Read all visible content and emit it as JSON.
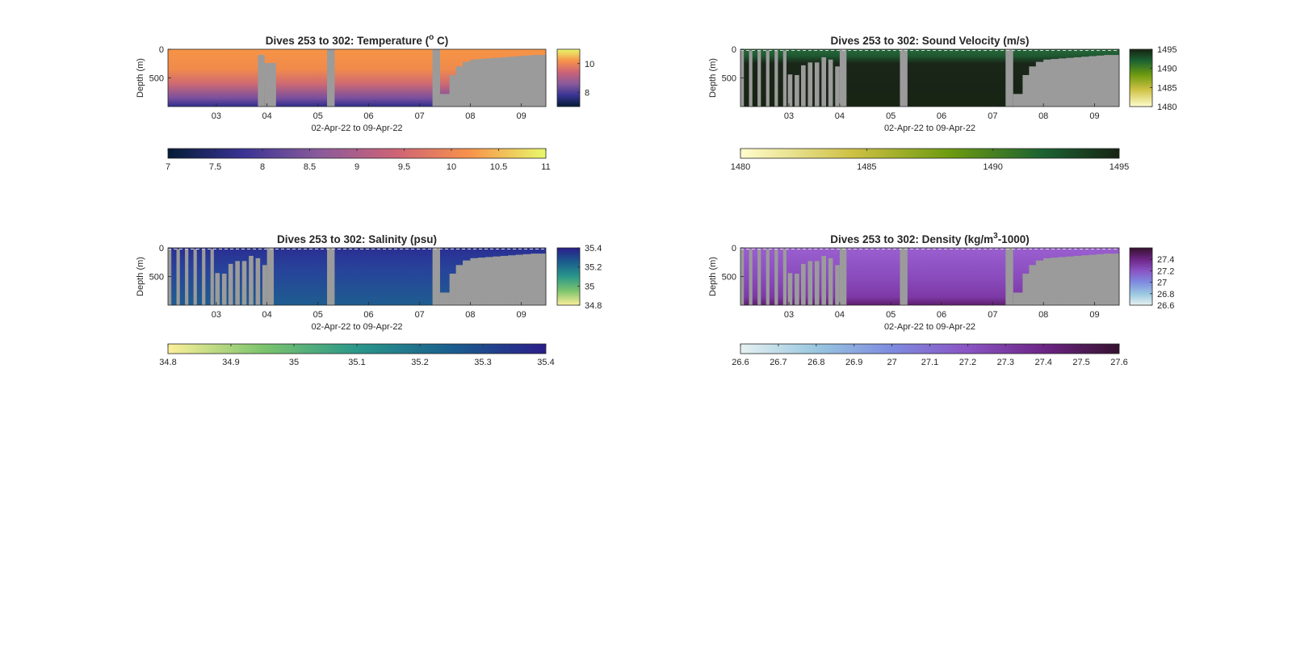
{
  "chart_data": [
    {
      "type": "heatmap",
      "title": "Dives 253 to 302: Temperature (",
      "title_sup": "o",
      "title_end": " C)",
      "xlabel": "02-Apr-22 to 09-Apr-22",
      "ylabel": "Depth (m)",
      "x_ticklabels": [
        "03",
        "04",
        "05",
        "06",
        "07",
        "08",
        "09"
      ],
      "y_ticklabels": [
        "0",
        "500"
      ],
      "ylim": [
        0,
        1000
      ],
      "variable": "temperature",
      "units": "°C",
      "clim": [
        7,
        11
      ],
      "colormap": "thermal",
      "colorbar_side_ticks": [
        "10",
        "8"
      ],
      "colorbar_bottom_ticks": [
        "7",
        "7.5",
        "8",
        "8.5",
        "9",
        "9.5",
        "10",
        "10.5",
        "11"
      ],
      "no_data_color": "#9b9b9b",
      "data_regions": [
        {
          "depth_m": [
            0,
            300
          ],
          "value": 10.1
        },
        {
          "depth_m": [
            300,
            600
          ],
          "value": 9.3
        },
        {
          "depth_m": [
            600,
            850
          ],
          "value": 8.5
        },
        {
          "depth_m": [
            850,
            1000
          ],
          "value": 7.6
        }
      ]
    },
    {
      "type": "heatmap",
      "title": "Dives 253 to 302: Sound Velocity (m/s)",
      "xlabel": "02-Apr-22 to 09-Apr-22",
      "ylabel": "Depth (m)",
      "x_ticklabels": [
        "03",
        "04",
        "05",
        "06",
        "07",
        "08",
        "09"
      ],
      "y_ticklabels": [
        "0",
        "500"
      ],
      "ylim": [
        0,
        1000
      ],
      "variable": "sound_velocity",
      "units": "m/s",
      "clim": [
        1480,
        1495
      ],
      "colormap": "speed",
      "colorbar_side_ticks": [
        "1495",
        "1490",
        "1485",
        "1480"
      ],
      "colorbar_bottom_ticks": [
        "1480",
        "1485",
        "1490",
        "1495"
      ],
      "no_data_color": "#9b9b9b",
      "data_regions": [
        {
          "depth_m": [
            0,
            150
          ],
          "value": 1491.5
        },
        {
          "depth_m": [
            150,
            1000
          ],
          "value": 1495
        }
      ]
    },
    {
      "type": "heatmap",
      "title": "Dives 253 to 302: Salinity (psu)",
      "xlabel": "02-Apr-22 to 09-Apr-22",
      "ylabel": "Depth (m)",
      "x_ticklabels": [
        "03",
        "04",
        "05",
        "06",
        "07",
        "08",
        "09"
      ],
      "y_ticklabels": [
        "0",
        "500"
      ],
      "ylim": [
        0,
        1000
      ],
      "variable": "salinity",
      "units": "psu",
      "clim": [
        34.8,
        35.4
      ],
      "colormap": "haline",
      "colorbar_side_ticks": [
        "35.4",
        "35.2",
        "35",
        "34.8"
      ],
      "colorbar_bottom_ticks": [
        "34.8",
        "34.9",
        "35",
        "35.1",
        "35.2",
        "35.3",
        "35.4"
      ],
      "no_data_color": "#9b9b9b",
      "data_regions": [
        {
          "depth_m": [
            0,
            250
          ],
          "value": 35.36
        },
        {
          "depth_m": [
            250,
            650
          ],
          "value": 35.3
        },
        {
          "depth_m": [
            650,
            1000
          ],
          "value": 35.24
        }
      ]
    },
    {
      "type": "heatmap",
      "title": "Dives 253 to 302: Density (kg/m",
      "title_sup": "3",
      "title_end": "-1000)",
      "xlabel": "02-Apr-22 to 09-Apr-22",
      "ylabel": "Depth (m)",
      "x_ticklabels": [
        "03",
        "04",
        "05",
        "06",
        "07",
        "08",
        "09"
      ],
      "y_ticklabels": [
        "0",
        "500"
      ],
      "ylim": [
        0,
        1000
      ],
      "variable": "density",
      "units": "kg/m3-1000",
      "clim": [
        26.6,
        27.6
      ],
      "colormap": "dense",
      "colorbar_side_ticks": [
        "27.4",
        "27.2",
        "27",
        "26.8",
        "26.6"
      ],
      "colorbar_bottom_ticks": [
        "26.6",
        "26.7",
        "26.8",
        "26.9",
        "27",
        "27.1",
        "27.2",
        "27.3",
        "27.4",
        "27.5",
        "27.6"
      ],
      "no_data_color": "#9b9b9b",
      "data_regions": [
        {
          "depth_m": [
            0,
            400
          ],
          "value": 27.15
        },
        {
          "depth_m": [
            400,
            800
          ],
          "value": 27.25
        },
        {
          "depth_m": [
            800,
            1000
          ],
          "value": 27.45
        }
      ]
    }
  ]
}
